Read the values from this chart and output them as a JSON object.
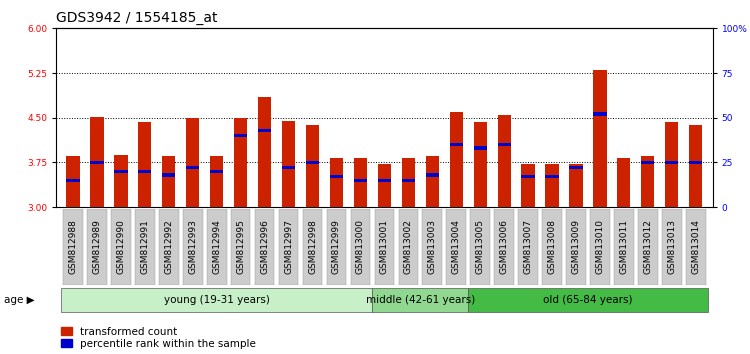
{
  "title": "GDS3942 / 1554185_at",
  "samples": [
    "GSM812988",
    "GSM812989",
    "GSM812990",
    "GSM812991",
    "GSM812992",
    "GSM812993",
    "GSM812994",
    "GSM812995",
    "GSM812996",
    "GSM812997",
    "GSM812998",
    "GSM812999",
    "GSM813000",
    "GSM813001",
    "GSM813002",
    "GSM813003",
    "GSM813004",
    "GSM813005",
    "GSM813006",
    "GSM813007",
    "GSM813008",
    "GSM813009",
    "GSM813010",
    "GSM813011",
    "GSM813012",
    "GSM813013",
    "GSM813014"
  ],
  "bar_values": [
    3.85,
    4.52,
    3.88,
    4.42,
    3.85,
    4.5,
    3.85,
    4.5,
    4.85,
    4.45,
    4.38,
    3.82,
    3.82,
    3.72,
    3.82,
    3.85,
    4.6,
    4.42,
    4.55,
    3.72,
    3.72,
    3.72,
    5.3,
    3.82,
    3.85,
    4.42,
    4.38
  ],
  "percentile_values": [
    15,
    25,
    20,
    20,
    18,
    22,
    20,
    40,
    43,
    22,
    25,
    17,
    15,
    15,
    15,
    18,
    35,
    33,
    35,
    17,
    17,
    22,
    52,
    28,
    25,
    25,
    25
  ],
  "groups": [
    {
      "label": "young (19-31 years)",
      "start": 0,
      "end": 13
    },
    {
      "label": "middle (42-61 years)",
      "start": 13,
      "end": 17
    },
    {
      "label": "old (65-84 years)",
      "start": 17,
      "end": 27
    }
  ],
  "group_colors": [
    "#c8f0c8",
    "#90d890",
    "#44bb44"
  ],
  "ylim_left": [
    3.0,
    6.0
  ],
  "ylim_right": [
    0,
    100
  ],
  "yticks_left": [
    3.0,
    3.75,
    4.5,
    5.25,
    6.0
  ],
  "yticks_right": [
    0,
    25,
    50,
    75,
    100
  ],
  "grid_values": [
    3.75,
    4.5,
    5.25
  ],
  "bar_color": "#cc2200",
  "marker_color": "#0000cc",
  "bar_width": 0.55,
  "title_fontsize": 10,
  "tick_fontsize": 6.5,
  "label_fontsize": 7.5,
  "legend_red": "transformed count",
  "legend_blue": "percentile rank within the sample"
}
